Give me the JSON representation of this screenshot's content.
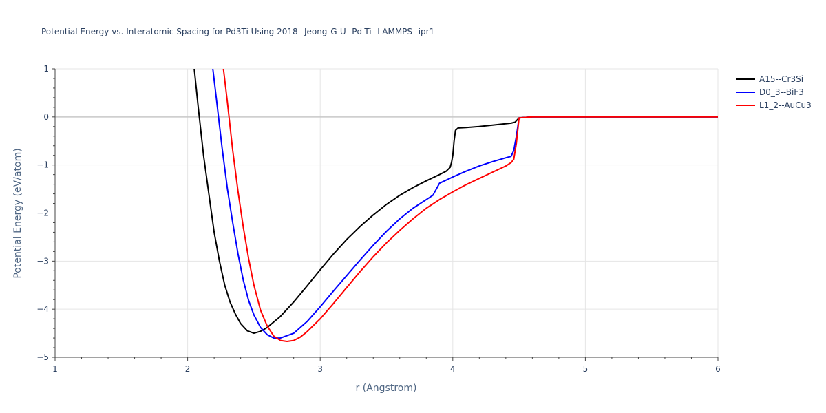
{
  "chart_data": {
    "type": "line",
    "title": "Potential Energy vs. Interatomic Spacing for Pd3Ti Using 2018--Jeong-G-U--Pd-Ti--LAMMPS--ipr1",
    "xlabel": "r (Angstrom)",
    "ylabel": "Potential Energy (eV/atom)",
    "xlim": [
      1,
      6
    ],
    "ylim": [
      -5,
      1
    ],
    "xticks": [
      1,
      2,
      3,
      4,
      5,
      6
    ],
    "yticks": [
      -5,
      -4,
      -3,
      -2,
      -1,
      0,
      1
    ],
    "xtick_labels": [
      "1",
      "2",
      "3",
      "4",
      "5",
      "6"
    ],
    "ytick_labels": [
      "−5",
      "−4",
      "−3",
      "−2",
      "−1",
      "0",
      "1"
    ],
    "grid": true,
    "legend_position": "top-right",
    "series": [
      {
        "name": "A15--Cr3Si",
        "color": "#000000",
        "x": [
          2.05,
          2.08,
          2.12,
          2.16,
          2.2,
          2.24,
          2.28,
          2.32,
          2.36,
          2.4,
          2.45,
          2.5,
          2.55,
          2.6,
          2.7,
          2.8,
          2.9,
          3.0,
          3.1,
          3.2,
          3.3,
          3.4,
          3.5,
          3.6,
          3.7,
          3.8,
          3.9,
          3.95,
          3.98,
          3.99,
          4.0,
          4.01,
          4.02,
          4.04,
          4.1,
          4.2,
          4.3,
          4.44,
          4.47,
          4.5,
          4.6,
          5.0,
          5.5,
          6.0
        ],
        "y": [
          1.0,
          0.2,
          -0.8,
          -1.6,
          -2.4,
          -3.0,
          -3.5,
          -3.85,
          -4.1,
          -4.3,
          -4.45,
          -4.5,
          -4.46,
          -4.38,
          -4.15,
          -3.85,
          -3.52,
          -3.18,
          -2.85,
          -2.55,
          -2.28,
          -2.04,
          -1.82,
          -1.63,
          -1.47,
          -1.33,
          -1.2,
          -1.13,
          -1.05,
          -0.95,
          -0.8,
          -0.5,
          -0.28,
          -0.23,
          -0.22,
          -0.2,
          -0.17,
          -0.13,
          -0.11,
          -0.02,
          0.0,
          0.0,
          0.0,
          0.0
        ]
      },
      {
        "name": "D0_3--BiF3",
        "color": "#0000ff",
        "x": [
          2.19,
          2.22,
          2.26,
          2.3,
          2.34,
          2.38,
          2.42,
          2.46,
          2.5,
          2.55,
          2.6,
          2.65,
          2.7,
          2.8,
          2.9,
          3.0,
          3.1,
          3.2,
          3.3,
          3.4,
          3.5,
          3.6,
          3.7,
          3.8,
          3.85,
          3.88,
          3.9,
          4.0,
          4.1,
          4.2,
          4.3,
          4.4,
          4.44,
          4.46,
          4.48,
          4.5,
          4.6,
          5.0,
          5.5,
          6.0
        ],
        "y": [
          1.0,
          0.3,
          -0.65,
          -1.5,
          -2.2,
          -2.85,
          -3.4,
          -3.82,
          -4.12,
          -4.38,
          -4.53,
          -4.6,
          -4.6,
          -4.5,
          -4.26,
          -3.95,
          -3.62,
          -3.3,
          -2.98,
          -2.67,
          -2.38,
          -2.12,
          -1.9,
          -1.72,
          -1.63,
          -1.48,
          -1.38,
          -1.25,
          -1.13,
          -1.02,
          -0.93,
          -0.85,
          -0.82,
          -0.7,
          -0.4,
          -0.02,
          0.0,
          0.0,
          0.0,
          0.0
        ]
      },
      {
        "name": "L1_2--AuCu3",
        "color": "#ff0000",
        "x": [
          2.27,
          2.3,
          2.34,
          2.38,
          2.42,
          2.46,
          2.5,
          2.55,
          2.6,
          2.65,
          2.7,
          2.75,
          2.8,
          2.85,
          2.9,
          3.0,
          3.1,
          3.2,
          3.3,
          3.4,
          3.5,
          3.6,
          3.7,
          3.8,
          3.9,
          4.0,
          4.1,
          4.2,
          4.3,
          4.4,
          4.44,
          4.46,
          4.48,
          4.5,
          4.6,
          5.0,
          5.5,
          6.0
        ],
        "y": [
          1.0,
          0.3,
          -0.7,
          -1.55,
          -2.3,
          -2.95,
          -3.5,
          -4.02,
          -4.35,
          -4.56,
          -4.65,
          -4.67,
          -4.65,
          -4.58,
          -4.47,
          -4.2,
          -3.88,
          -3.55,
          -3.22,
          -2.91,
          -2.62,
          -2.36,
          -2.12,
          -1.9,
          -1.72,
          -1.56,
          -1.41,
          -1.28,
          -1.15,
          -1.02,
          -0.95,
          -0.88,
          -0.55,
          -0.02,
          0.0,
          0.0,
          0.0,
          0.0
        ]
      }
    ]
  }
}
